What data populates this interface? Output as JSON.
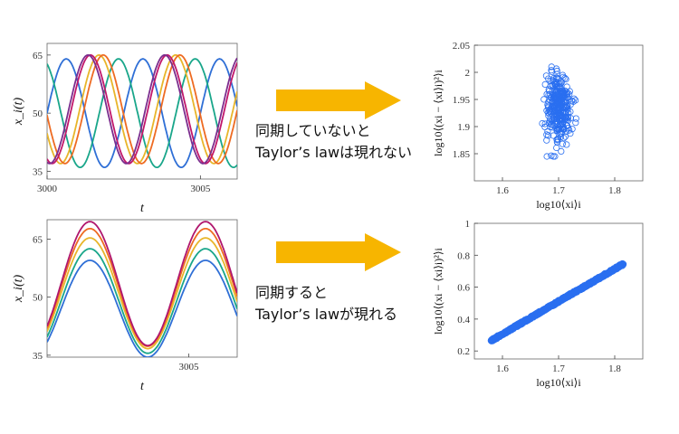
{
  "rows": [
    {
      "caption_lines": [
        "同期していないと",
        "Taylor’s lawは現れない"
      ],
      "arrow_color": "#f7b500"
    },
    {
      "caption_lines": [
        "同期すると",
        "Taylor’s lawが現れる"
      ],
      "arrow_color": "#f7b500"
    }
  ],
  "chart_data": [
    {
      "type": "line",
      "xlabel": "t",
      "ylabel": "x_i(t)",
      "xlim": [
        3000,
        3006.2
      ],
      "ylim": [
        33,
        68
      ],
      "xticks": [
        3000,
        3005
      ],
      "yticks": [
        35,
        50,
        65
      ],
      "grid": false,
      "series": [
        {
          "color": "#2f6fd6",
          "mean": 50,
          "amp": 14,
          "period": 2.5,
          "phase": 0.0
        },
        {
          "color": "#19a68a",
          "mean": 50,
          "amp": 14,
          "period": 2.5,
          "phase": 2.0
        },
        {
          "color": "#e8b52a",
          "mean": 51,
          "amp": 14,
          "period": 2.5,
          "phase": 3.6
        },
        {
          "color": "#ee6b22",
          "mean": 51,
          "amp": 14,
          "period": 2.5,
          "phase": 3.25
        },
        {
          "color": "#c0176b",
          "mean": 51,
          "amp": 14,
          "period": 2.5,
          "phase": 4.3
        },
        {
          "color": "#7b2d8e",
          "mean": 51,
          "amp": 14,
          "period": 2.5,
          "phase": 4.5
        }
      ]
    },
    {
      "type": "scatter",
      "xlabel": "log10⟨xi⟩i",
      "ylabel": "log10⟨(xi − ⟨xi⟩i)²⟩i",
      "xlim": [
        1.55,
        1.85
      ],
      "ylim": [
        1.8,
        2.05
      ],
      "xticks": [
        1.6,
        1.7,
        1.8
      ],
      "yticks": [
        1.85,
        1.9,
        1.95,
        2,
        2.05
      ],
      "marker_color": "#2a6ff0",
      "points_center": [
        1.7,
        1.935
      ],
      "points_spread_x": [
        1.665,
        1.735
      ],
      "points_spread_y": [
        1.845,
        2.02
      ]
    },
    {
      "type": "line",
      "xlabel": "t",
      "ylabel": "x_i(t)",
      "xlim": [
        3001.2,
        3006.3
      ],
      "ylim": [
        34.5,
        70
      ],
      "xticks": [
        3005
      ],
      "yticks": [
        35,
        50,
        65
      ],
      "grid": false,
      "series": [
        {
          "color": "#2f6fd6",
          "mean": 47,
          "amp": 12.5,
          "period": 3.1,
          "peak": 3002.35
        },
        {
          "color": "#19a68a",
          "mean": 49,
          "amp": 13.5,
          "period": 3.1,
          "peak": 3002.35
        },
        {
          "color": "#e8b52a",
          "mean": 51,
          "amp": 14.3,
          "period": 3.1,
          "peak": 3002.35
        },
        {
          "color": "#ee6b22",
          "mean": 52.5,
          "amp": 15.2,
          "period": 3.1,
          "peak": 3002.35
        },
        {
          "color": "#b0166d",
          "mean": 53.5,
          "amp": 16,
          "period": 3.1,
          "peak": 3002.35
        }
      ]
    },
    {
      "type": "scatter",
      "xlabel": "log10⟨xi⟩i",
      "ylabel": "log10⟨(xi − ⟨xi⟩i)²⟩i",
      "xlim": [
        1.55,
        1.85
      ],
      "ylim": [
        0.15,
        1.0
      ],
      "xticks": [
        1.6,
        1.7,
        1.8
      ],
      "yticks": [
        0.2,
        0.4,
        0.6,
        0.8,
        1
      ],
      "marker_color": "#2a6ff0",
      "line_from": [
        1.58,
        0.265
      ],
      "line_to": [
        1.815,
        0.745
      ]
    }
  ]
}
